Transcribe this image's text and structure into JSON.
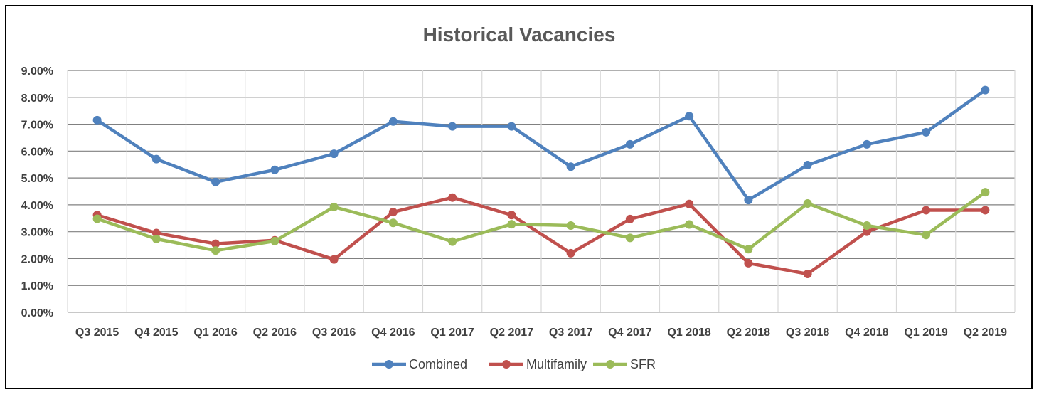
{
  "chart_data": {
    "type": "line",
    "title": "Historical Vacancies",
    "xlabel": "",
    "ylabel": "",
    "ylim": [
      0,
      9
    ],
    "yticks": [
      "0.00%",
      "1.00%",
      "2.00%",
      "3.00%",
      "4.00%",
      "5.00%",
      "6.00%",
      "7.00%",
      "8.00%",
      "9.00%"
    ],
    "categories": [
      "Q3 2015",
      "Q4 2015",
      "Q1 2016",
      "Q2 2016",
      "Q3 2016",
      "Q4 2016",
      "Q1 2017",
      "Q2 2017",
      "Q3 2017",
      "Q4 2017",
      "Q1 2018",
      "Q2 2018",
      "Q3 2018",
      "Q4 2018",
      "Q1 2019",
      "Q2 2019"
    ],
    "grid": true,
    "legend_position": "bottom",
    "series": [
      {
        "name": "Combined",
        "color": "#4F81BD",
        "values": [
          7.15,
          5.7,
          4.85,
          5.3,
          5.9,
          7.1,
          6.92,
          6.92,
          5.42,
          6.25,
          7.3,
          4.18,
          5.48,
          6.25,
          6.7,
          8.27
        ]
      },
      {
        "name": "Multifamily",
        "color": "#C0504D",
        "values": [
          3.62,
          2.95,
          2.55,
          2.68,
          1.97,
          3.73,
          4.27,
          3.62,
          2.2,
          3.47,
          4.03,
          1.83,
          1.43,
          3.0,
          3.8,
          3.8
        ]
      },
      {
        "name": "SFR",
        "color": "#9BBB59",
        "values": [
          3.48,
          2.73,
          2.3,
          2.65,
          3.92,
          3.33,
          2.63,
          3.28,
          3.23,
          2.77,
          3.27,
          2.35,
          4.05,
          3.23,
          2.88,
          4.47
        ]
      }
    ]
  }
}
